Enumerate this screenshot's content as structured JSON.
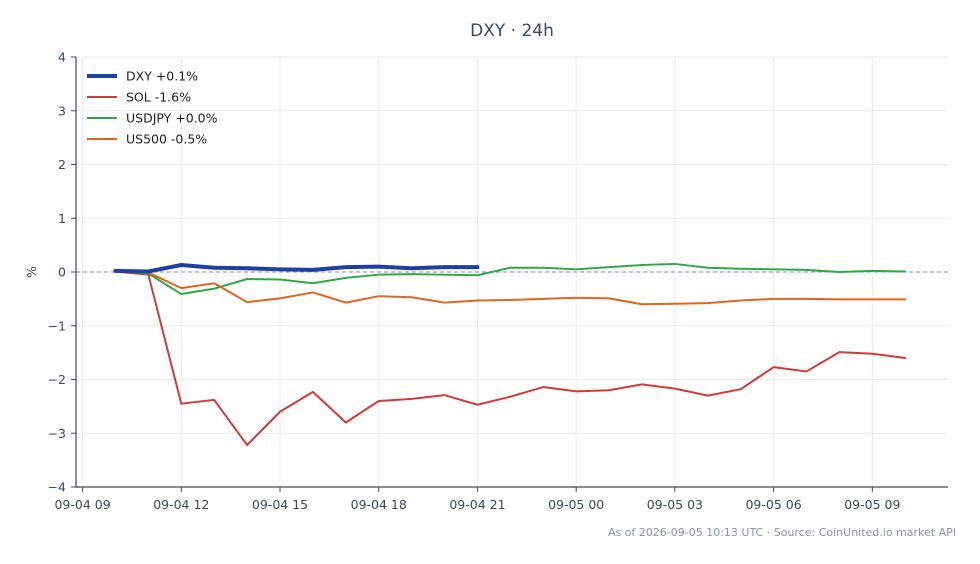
{
  "chart_data": {
    "type": "line",
    "title": "DXY · 24h",
    "ylabel": "%",
    "xlabel": "",
    "ylim": [
      -4,
      4
    ],
    "yticks": [
      -4,
      -3,
      -2,
      -1,
      0,
      1,
      2,
      3,
      4
    ],
    "ytick_labels": [
      "−4",
      "−3",
      "−2",
      "−1",
      "0",
      "1",
      "2",
      "3",
      "4"
    ],
    "xlim": [
      -0.2,
      26.3
    ],
    "xticks": [
      0,
      3,
      6,
      9,
      12,
      15,
      18,
      21,
      24
    ],
    "xtick_labels": [
      "09-04 09",
      "09-04 12",
      "09-04 15",
      "09-04 18",
      "09-04 21",
      "09-05 00",
      "09-05 03",
      "09-05 06",
      "09-05 09"
    ],
    "x_hours": [
      1,
      2,
      3,
      4,
      5,
      6,
      7,
      8,
      9,
      10,
      11,
      12,
      13,
      14,
      15,
      16,
      17,
      18,
      19,
      20,
      21,
      22,
      23,
      24,
      25,
      26
    ],
    "grid": true,
    "zero_line": true,
    "legend_position": "top-left",
    "series": [
      {
        "name": "DXY +0.1%",
        "color": "#1f3fa3",
        "width": 4,
        "values": [
          0.02,
          0.01,
          0.13,
          0.08,
          0.07,
          0.05,
          0.04,
          0.09,
          0.1,
          0.07,
          0.09,
          0.09
        ]
      },
      {
        "name": "SOL -1.6%",
        "color": "#d03a3a",
        "width": 2,
        "values": [
          0.01,
          -0.05,
          -2.45,
          -2.38,
          -3.22,
          -2.6,
          -2.23,
          -2.8,
          -2.4,
          -2.36,
          -2.29,
          -2.47,
          -2.32,
          -2.14,
          -2.22,
          -2.2,
          -2.09,
          -2.17,
          -2.3,
          -2.18,
          -1.77,
          -1.85,
          -1.49,
          -1.52,
          -1.6
        ]
      },
      {
        "name": "USDJPY +0.0%",
        "color": "#2ea84a",
        "width": 2,
        "values": [
          0.02,
          -0.03,
          -0.41,
          -0.31,
          -0.13,
          -0.14,
          -0.21,
          -0.11,
          -0.05,
          -0.04,
          -0.05,
          -0.06,
          0.08,
          0.08,
          0.05,
          0.09,
          0.13,
          0.15,
          0.08,
          0.06,
          0.05,
          0.04,
          0.0,
          0.02,
          0.01
        ]
      },
      {
        "name": "US500 -0.5%",
        "color": "#e0661f",
        "width": 2,
        "values": [
          0.02,
          -0.01,
          -0.3,
          -0.21,
          -0.56,
          -0.49,
          -0.38,
          -0.57,
          -0.45,
          -0.47,
          -0.57,
          -0.53,
          -0.52,
          -0.5,
          -0.48,
          -0.49,
          -0.6,
          -0.59,
          -0.58,
          -0.53,
          -0.5,
          -0.5,
          -0.51,
          -0.51,
          -0.51
        ]
      }
    ]
  },
  "footer": "As of 2026-09-05 10:13 UTC · Source: CoinUnited.io market API"
}
